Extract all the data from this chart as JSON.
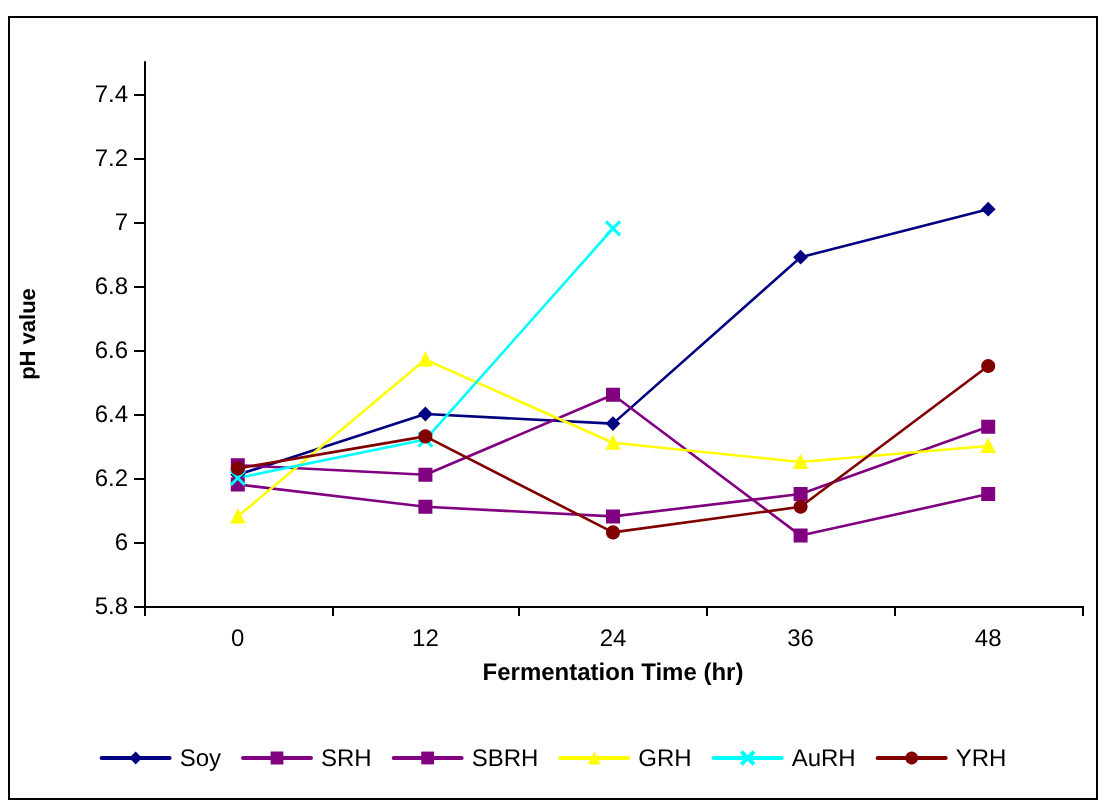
{
  "chart_data": {
    "type": "line",
    "xlabel": "Fermentation Time (hr)",
    "ylabel": "pH value",
    "categories": [
      "0",
      "12",
      "24",
      "36",
      "48"
    ],
    "ylim": [
      5.8,
      7.5
    ],
    "yticks": [
      5.8,
      6,
      6.2,
      6.4,
      6.6,
      6.8,
      7,
      7.2,
      7.4
    ],
    "grid": false,
    "legend": "bottom",
    "line_style": "solid",
    "series": [
      {
        "name": "Soy",
        "color": "#000080",
        "marker": "diamond",
        "values": [
          6.21,
          6.4,
          6.37,
          6.89,
          7.04
        ]
      },
      {
        "name": "SRH",
        "color": "#800080",
        "marker": "square",
        "values": [
          6.18,
          6.11,
          6.08,
          6.15,
          6.36
        ]
      },
      {
        "name": "SBRH",
        "color": "#800080",
        "marker": "square",
        "values": [
          6.24,
          6.21,
          6.46,
          6.02,
          6.15
        ]
      },
      {
        "name": "GRH",
        "color": "#ffff00",
        "marker": "triangle",
        "values": [
          6.08,
          6.57,
          6.31,
          6.25,
          6.3
        ]
      },
      {
        "name": "AuRH",
        "color": "#00ffff",
        "marker": "cross",
        "values": [
          6.2,
          6.32,
          6.98,
          null,
          null
        ]
      },
      {
        "name": "YRH",
        "color": "#800000",
        "marker": "circle",
        "values": [
          6.23,
          6.33,
          6.03,
          6.11,
          6.55
        ]
      }
    ]
  }
}
